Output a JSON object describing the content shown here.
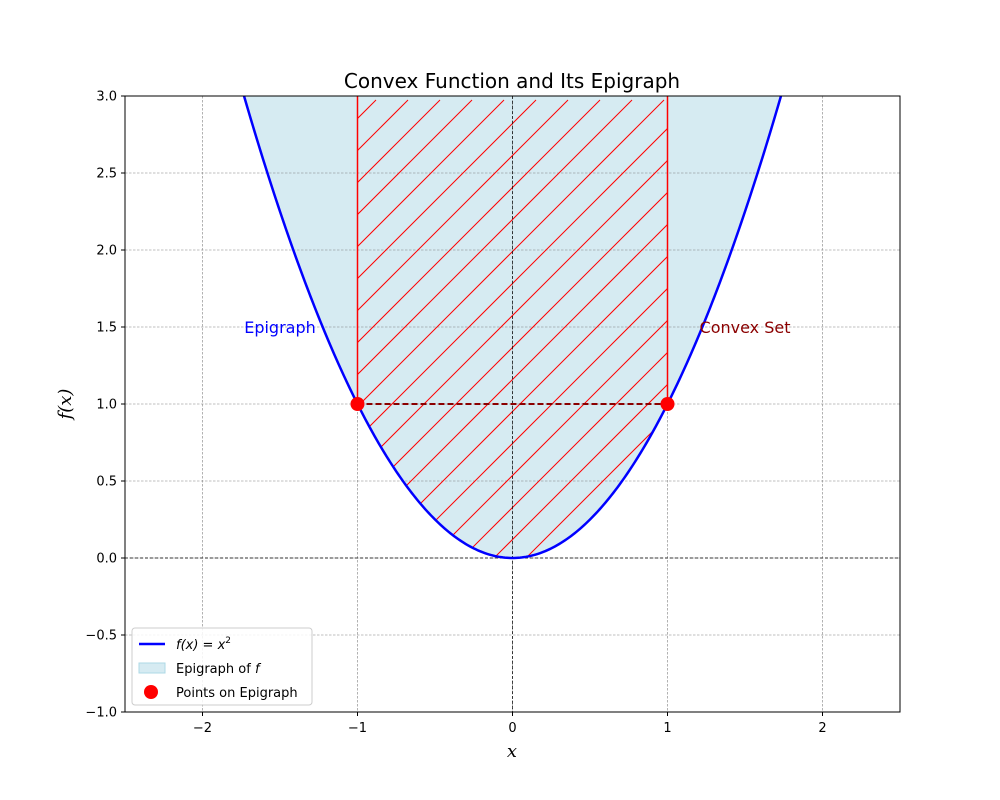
{
  "chart_data": {
    "type": "line",
    "title": "Convex Function and Its Epigraph",
    "xlabel": "x",
    "ylabel": "f(x)",
    "xlim": [
      -2.5,
      2.5
    ],
    "ylim": [
      -1.0,
      3.0
    ],
    "x_ticks": [
      -2,
      -1,
      0,
      1,
      2
    ],
    "x_tick_labels": [
      "−2",
      "−1",
      "0",
      "1",
      "2"
    ],
    "y_ticks": [
      -1.0,
      -0.5,
      0.0,
      0.5,
      1.0,
      1.5,
      2.0,
      2.5,
      3.0
    ],
    "y_tick_labels": [
      "−1.0",
      "−0.5",
      "0.0",
      "0.5",
      "1.0",
      "1.5",
      "2.0",
      "2.5",
      "3.0"
    ],
    "grid": true,
    "function": "x^2",
    "series": [
      {
        "name": "f(x) = x²",
        "kind": "line",
        "color": "#0000ff",
        "x": [
          -1.73,
          -1.5,
          -1.0,
          -0.5,
          0.0,
          0.5,
          1.0,
          1.5,
          1.73
        ],
        "y": [
          3.0,
          2.25,
          1.0,
          0.25,
          0.0,
          0.25,
          1.0,
          2.25,
          3.0
        ]
      },
      {
        "name": "Epigraph of f",
        "kind": "area",
        "color": "#add8e6",
        "region": "y >= x^2, y <= 3"
      },
      {
        "name": "Points on Epigraph",
        "kind": "scatter",
        "color": "#ff0000",
        "x": [
          -1,
          1
        ],
        "y": [
          1,
          1
        ]
      }
    ],
    "hatched_region": {
      "x_range": [
        -1,
        1
      ],
      "y_max": 3,
      "color": "#ff0000"
    },
    "segment": {
      "x": [
        -1,
        1
      ],
      "y": [
        1,
        1
      ],
      "style": "dashed",
      "color": "#8b0000"
    },
    "annotations": [
      {
        "text": "Epigraph",
        "x": -1.5,
        "y": 1.5,
        "color": "#0000ff"
      },
      {
        "text": "Convex Set",
        "x": 1.5,
        "y": 1.5,
        "color": "#8b0000"
      }
    ],
    "legend": {
      "position": "lower left",
      "entries": [
        {
          "label_prefix": "f(x) = x",
          "label_sup": "2"
        },
        {
          "label_prefix": "Epigraph of ",
          "label_italic": "f"
        },
        {
          "label_prefix": "Points on Epigraph"
        }
      ]
    }
  }
}
